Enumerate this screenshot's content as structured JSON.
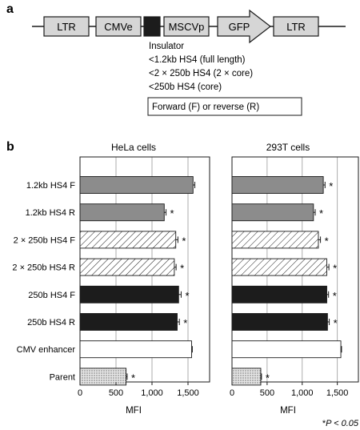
{
  "panel_a": {
    "label": "a",
    "construct": [
      {
        "name": "LTR",
        "type": "box"
      },
      {
        "name": "CMVe",
        "type": "box"
      },
      {
        "name": "",
        "type": "insulator"
      },
      {
        "name": "MSCVp",
        "type": "box"
      },
      {
        "name": "GFP",
        "type": "arrow"
      },
      {
        "name": "LTR",
        "type": "box"
      }
    ],
    "insulator_title": "Insulator",
    "insulator_options": [
      "<1.2kb HS4 (full length)",
      "<2 × 250b HS4 (2 × core)",
      "<250b HS4 (core)"
    ],
    "orientation": "Forward (F) or reverse (R)"
  },
  "panel_b": {
    "label": "b"
  },
  "footnote": {
    "prefix": "*",
    "text": "P < 0.05"
  },
  "colors": {
    "gray": "#8c8c8c",
    "black": "#1c1c1c",
    "white": "#ffffff",
    "dotted": "#d9d9d9",
    "ink": "#1a1a1a"
  },
  "chart_data": [
    {
      "type": "bar",
      "orientation": "horizontal",
      "title": "HeLa cells",
      "xlabel": "MFI",
      "xlim": [
        0,
        1800
      ],
      "xticks": [
        0,
        500,
        1000,
        1500
      ],
      "xtick_labels": [
        "0",
        "500",
        "1,000",
        "1,500"
      ],
      "grid": "vertical",
      "categories": [
        "1.2kb HS4 F",
        "1.2kb HS4 R",
        "2 × 250b HS4 F",
        "2 × 250b HS4 R",
        "250b HS4 F",
        "250b HS4 R",
        "CMV enhancer",
        "Parent"
      ],
      "values": [
        1570,
        1170,
        1330,
        1310,
        1370,
        1350,
        1550,
        640
      ],
      "errors": [
        25,
        25,
        30,
        25,
        35,
        30,
        10,
        15
      ],
      "significant": [
        false,
        true,
        true,
        true,
        true,
        true,
        false,
        true
      ],
      "styles": [
        "gray",
        "gray",
        "hatch",
        "hatch",
        "black",
        "black",
        "white",
        "dotted"
      ]
    },
    {
      "type": "bar",
      "orientation": "horizontal",
      "title": "293T cells",
      "xlabel": "MFI",
      "xlim": [
        0,
        1800
      ],
      "xticks": [
        0,
        500,
        1000,
        1500
      ],
      "xtick_labels": [
        "0",
        "500",
        "1,000",
        "1,500"
      ],
      "grid": "vertical",
      "categories": [
        "1.2kb HS4 F",
        "1.2kb HS4 R",
        "2 × 250b HS4 F",
        "2 × 250b HS4 R",
        "250b HS4 F",
        "250b HS4 R",
        "CMV enhancer",
        "Parent"
      ],
      "values": [
        1300,
        1160,
        1230,
        1350,
        1350,
        1360,
        1550,
        410
      ],
      "errors": [
        25,
        25,
        30,
        30,
        25,
        25,
        10,
        10
      ],
      "significant": [
        true,
        true,
        true,
        true,
        true,
        true,
        false,
        true
      ],
      "styles": [
        "gray",
        "gray",
        "hatch",
        "hatch",
        "black",
        "black",
        "white",
        "dotted"
      ]
    }
  ]
}
